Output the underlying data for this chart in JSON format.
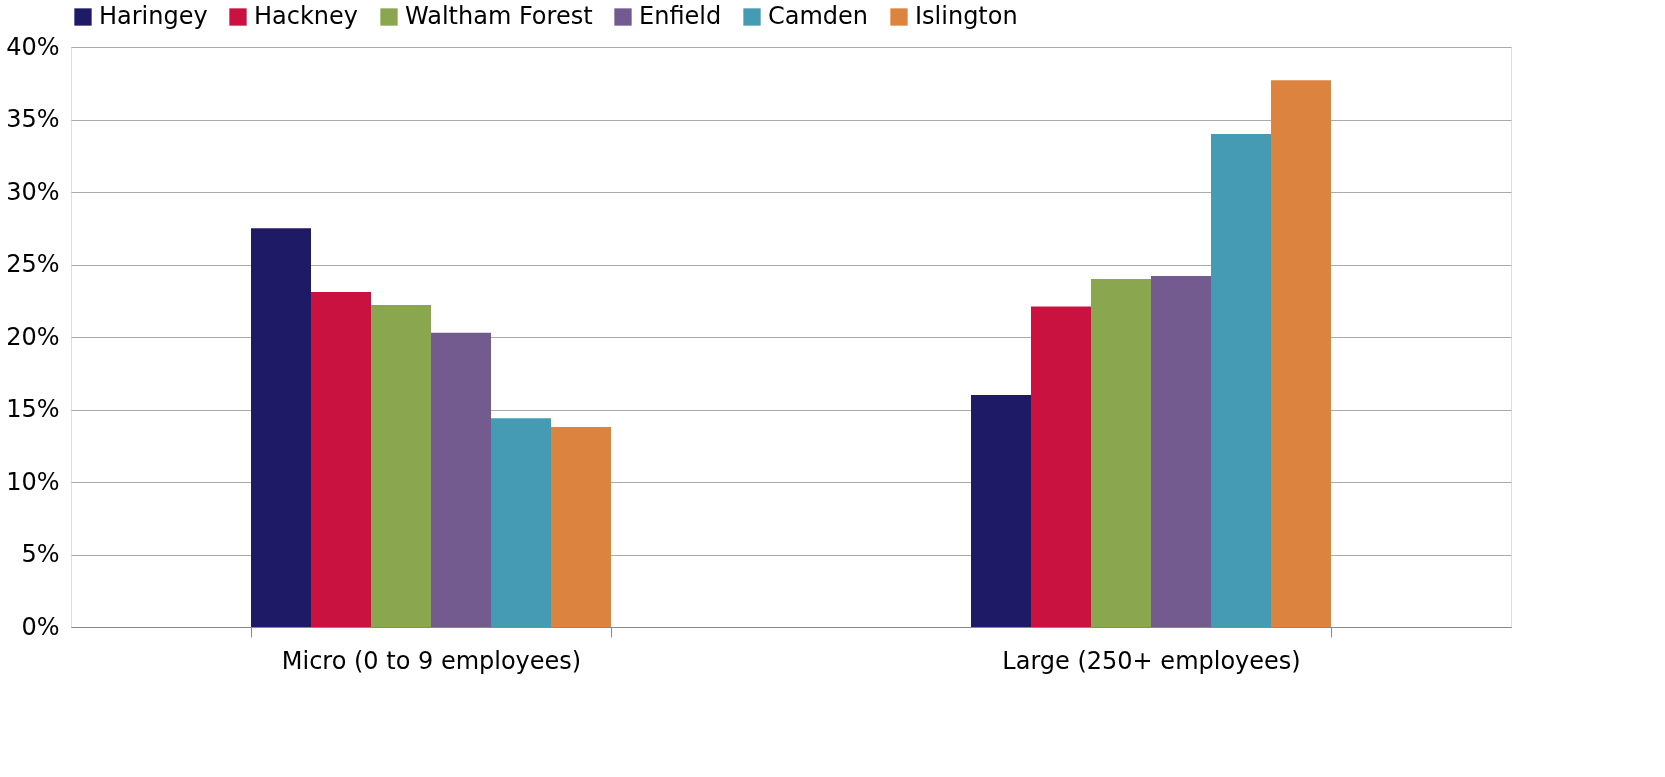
{
  "chart_data": {
    "type": "bar",
    "categories": [
      "Micro (0 to 9 employees)",
      "Large (250+ employees)"
    ],
    "series": [
      {
        "name": "Haringey",
        "color": "#1f1a66",
        "values": [
          27.5,
          16.0
        ]
      },
      {
        "name": "Hackney",
        "color": "#c9123f",
        "values": [
          23.1,
          22.1
        ]
      },
      {
        "name": "Waltham Forest",
        "color": "#8aa64e",
        "values": [
          22.2,
          24.0
        ]
      },
      {
        "name": "Enfield",
        "color": "#735b90",
        "values": [
          20.3,
          24.2
        ]
      },
      {
        "name": "Camden",
        "color": "#449bb3",
        "values": [
          14.4,
          34.0
        ]
      },
      {
        "name": "Islington",
        "color": "#dc843f",
        "values": [
          13.8,
          37.7
        ]
      }
    ],
    "ylim": [
      0,
      40
    ],
    "yticks": [
      {
        "value": 0,
        "label": "0%"
      },
      {
        "value": 5,
        "label": "5%"
      },
      {
        "value": 10,
        "label": "10%"
      },
      {
        "value": 15,
        "label": "15%"
      },
      {
        "value": 20,
        "label": "20%"
      },
      {
        "value": 25,
        "label": "25%"
      },
      {
        "value": 30,
        "label": "30%"
      },
      {
        "value": 35,
        "label": "35%"
      },
      {
        "value": 40,
        "label": "40%"
      }
    ],
    "grid": "y",
    "legend": "top"
  }
}
